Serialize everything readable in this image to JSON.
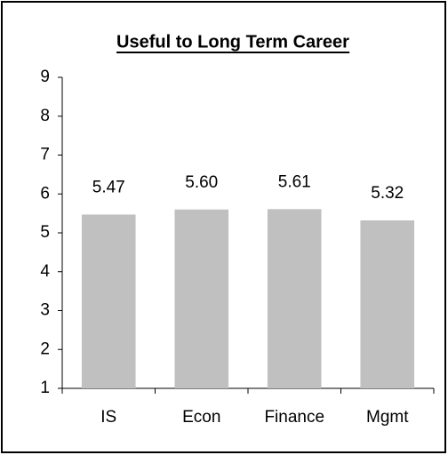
{
  "chart_data": {
    "type": "bar",
    "title": "Useful to Long Term Career",
    "categories": [
      "IS",
      "Econ",
      "Finance",
      "Mgmt"
    ],
    "values": [
      5.47,
      5.6,
      5.61,
      5.32
    ],
    "value_labels": [
      "5.47",
      "5.60",
      "5.61",
      "5.32"
    ],
    "color": "#c0c0c0",
    "ylim": [
      1,
      9
    ],
    "yticks": [
      1,
      2,
      3,
      4,
      5,
      6,
      7,
      8,
      9
    ],
    "grid": false
  }
}
